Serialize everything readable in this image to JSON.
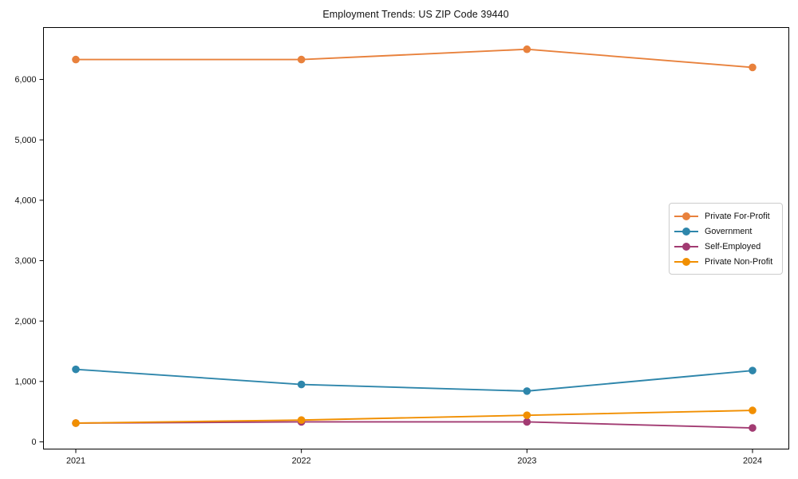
{
  "chart_data": {
    "type": "line",
    "title": "Employment Trends: US ZIP Code 39440",
    "xlabel": "",
    "ylabel": "",
    "categories": [
      "2021",
      "2022",
      "2023",
      "2024"
    ],
    "series": [
      {
        "name": "Private For-Profit",
        "color": "#E8813C",
        "values": [
          6330,
          6330,
          6500,
          6200
        ]
      },
      {
        "name": "Government",
        "color": "#2E86AB",
        "values": [
          1200,
          950,
          840,
          1180
        ]
      },
      {
        "name": "Self-Employed",
        "color": "#A23B72",
        "values": [
          310,
          330,
          330,
          230
        ]
      },
      {
        "name": "Private Non-Profit",
        "color": "#F18F01",
        "values": [
          310,
          360,
          440,
          520
        ]
      }
    ],
    "yticks": {
      "values": [
        0,
        1000,
        2000,
        3000,
        4000,
        5000,
        6000
      ],
      "labels": [
        "0",
        "1,000",
        "2,000",
        "3,000",
        "4,000",
        "5,000",
        "6,000"
      ]
    },
    "ylim": [
      -120,
      6860
    ],
    "grid": false,
    "legend_position": "center right",
    "colors": {
      "background": "#ffffff",
      "axis": "#000000",
      "tick_label": "#111111",
      "legend_border": "#cccccc"
    }
  }
}
